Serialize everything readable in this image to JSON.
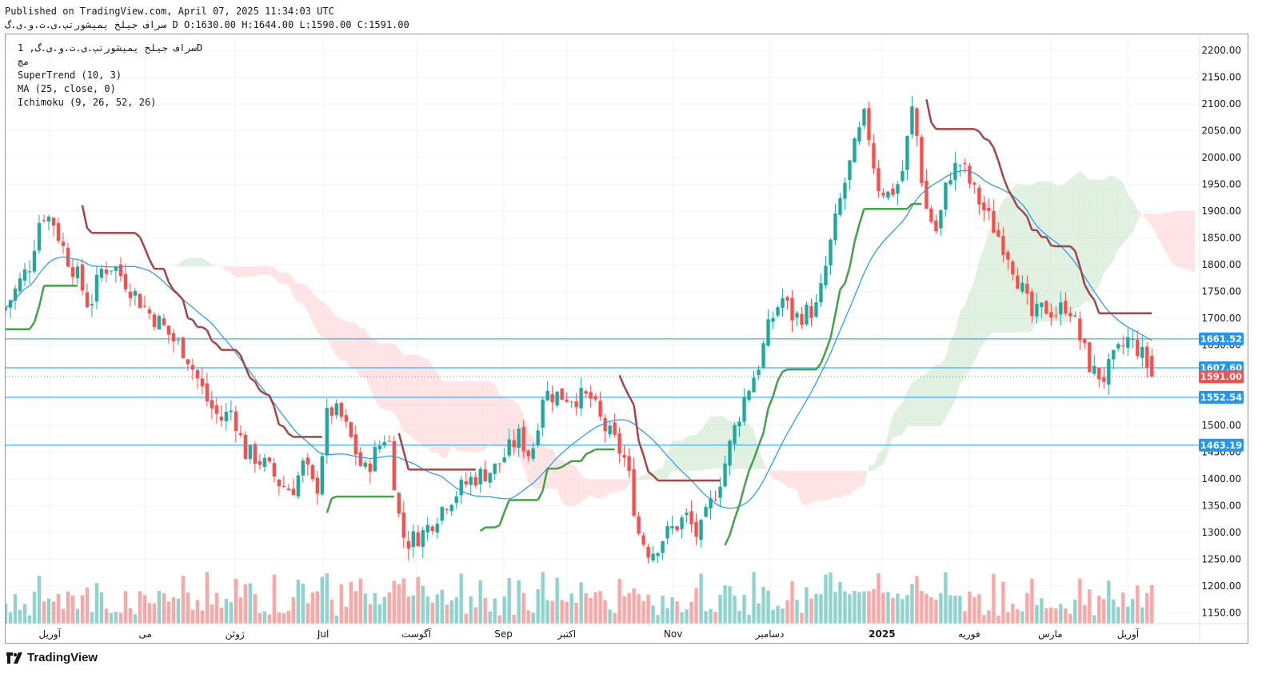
{
  "header": {
    "published": "Published on TradingView.com, April 07, 2025 11:34:03 UTC",
    "ohlc": "سراف جیلخ یمیشورتپ.ی.ت.و.ی.گ D O:1630.00 H:1644.00 L:1590.00 C:1591.00"
  },
  "legend": {
    "symbol": "سراف جیلخ یمیشورتپ.ی.ت.و.ی.گ, 1D",
    "exchange": "مچ",
    "supertrend": "SuperTrend (10, 3)",
    "ma": "MA (25, close, 0)",
    "ichimoku": "Ichimoku (9, 26, 52, 26)"
  },
  "branding": {
    "name": "TradingView"
  },
  "colors": {
    "up": "#26a69a",
    "down": "#ef5350",
    "supertrend_up": "#43a047",
    "supertrend_down": "#a04545",
    "ma": "#2196f3",
    "cloud_bull": "#c8e6c9",
    "cloud_bear": "#ffcdd2",
    "hline": "#2196f3",
    "last_price": "#ef5350"
  },
  "chart_data": {
    "type": "candlestick",
    "interval": "1D",
    "y_axis_ticks": [
      1150,
      1200,
      1250,
      1300,
      1350,
      1400,
      1450,
      1500,
      1550,
      1600,
      1650,
      1700,
      1750,
      1800,
      1850,
      1900,
      1950,
      2000,
      2050,
      2100,
      2150,
      2200
    ],
    "ylim": [
      1130,
      2230
    ],
    "x_axis_labels": [
      {
        "label": "آوریل",
        "t": 0.037
      },
      {
        "label": "می",
        "t": 0.117
      },
      {
        "label": "ژوئن",
        "t": 0.192
      },
      {
        "label": "Jul",
        "t": 0.266
      },
      {
        "label": "آگوست",
        "t": 0.344
      },
      {
        "label": "Sep",
        "t": 0.417
      },
      {
        "label": "اکتبر",
        "t": 0.47
      },
      {
        "label": "Nov",
        "t": 0.559
      },
      {
        "label": "دسامبر",
        "t": 0.64
      },
      {
        "label": "2025",
        "t": 0.734
      },
      {
        "label": "فوریه",
        "t": 0.807
      },
      {
        "label": "مارس",
        "t": 0.875
      },
      {
        "label": "آوریل",
        "t": 0.94
      }
    ],
    "horizontal_lines": [
      1661.52,
      1607.6,
      1552.54,
      1463.19
    ],
    "last_price": 1591.0,
    "price_labels": [
      "1661.52",
      "1607.60",
      "1591.00",
      "1552.54",
      "1463.19"
    ],
    "last_ohlc": {
      "open": 1630.0,
      "high": 1644.0,
      "low": 1590.0,
      "close": 1591.0
    },
    "close_path": [
      [
        0,
        1720
      ],
      [
        0.02,
        1800
      ],
      [
        0.03,
        1900
      ],
      [
        0.04,
        1880
      ],
      [
        0.05,
        1820
      ],
      [
        0.06,
        1780
      ],
      [
        0.07,
        1720
      ],
      [
        0.08,
        1790
      ],
      [
        0.09,
        1800
      ],
      [
        0.1,
        1770
      ],
      [
        0.11,
        1740
      ],
      [
        0.12,
        1710
      ],
      [
        0.13,
        1690
      ],
      [
        0.14,
        1660
      ],
      [
        0.15,
        1640
      ],
      [
        0.16,
        1590
      ],
      [
        0.17,
        1540
      ],
      [
        0.18,
        1510
      ],
      [
        0.19,
        1530
      ],
      [
        0.2,
        1450
      ],
      [
        0.21,
        1440
      ],
      [
        0.22,
        1420
      ],
      [
        0.23,
        1390
      ],
      [
        0.24,
        1380
      ],
      [
        0.25,
        1430
      ],
      [
        0.26,
        1370
      ],
      [
        0.27,
        1530
      ],
      [
        0.28,
        1520
      ],
      [
        0.29,
        1470
      ],
      [
        0.3,
        1410
      ],
      [
        0.31,
        1450
      ],
      [
        0.32,
        1490
      ],
      [
        0.33,
        1320
      ],
      [
        0.335,
        1280
      ],
      [
        0.35,
        1300
      ],
      [
        0.37,
        1360
      ],
      [
        0.39,
        1400
      ],
      [
        0.41,
        1420
      ],
      [
        0.42,
        1450
      ],
      [
        0.43,
        1480
      ],
      [
        0.44,
        1440
      ],
      [
        0.45,
        1560
      ],
      [
        0.47,
        1555
      ],
      [
        0.49,
        1550
      ],
      [
        0.5,
        1500
      ],
      [
        0.51,
        1470
      ],
      [
        0.52,
        1430
      ],
      [
        0.53,
        1300
      ],
      [
        0.54,
        1260
      ],
      [
        0.55,
        1290
      ],
      [
        0.56,
        1310
      ],
      [
        0.57,
        1330
      ],
      [
        0.58,
        1290
      ],
      [
        0.6,
        1410
      ],
      [
        0.61,
        1490
      ],
      [
        0.62,
        1560
      ],
      [
        0.63,
        1610
      ],
      [
        0.64,
        1690
      ],
      [
        0.65,
        1740
      ],
      [
        0.66,
        1700
      ],
      [
        0.68,
        1720
      ],
      [
        0.69,
        1830
      ],
      [
        0.7,
        1930
      ],
      [
        0.71,
        2010
      ],
      [
        0.72,
        2080
      ],
      [
        0.73,
        1950
      ],
      [
        0.74,
        1930
      ],
      [
        0.75,
        1960
      ],
      [
        0.76,
        2100
      ],
      [
        0.77,
        1910
      ],
      [
        0.78,
        1860
      ],
      [
        0.79,
        1970
      ],
      [
        0.8,
        1990
      ],
      [
        0.81,
        1940
      ],
      [
        0.82,
        1900
      ],
      [
        0.83,
        1860
      ],
      [
        0.84,
        1820
      ],
      [
        0.86,
        1700
      ],
      [
        0.87,
        1720
      ],
      [
        0.88,
        1710
      ],
      [
        0.89,
        1730
      ],
      [
        0.9,
        1660
      ],
      [
        0.91,
        1600
      ],
      [
        0.92,
        1590
      ],
      [
        0.93,
        1630
      ],
      [
        0.94,
        1660
      ],
      [
        0.95,
        1640
      ],
      [
        0.96,
        1591
      ]
    ]
  }
}
